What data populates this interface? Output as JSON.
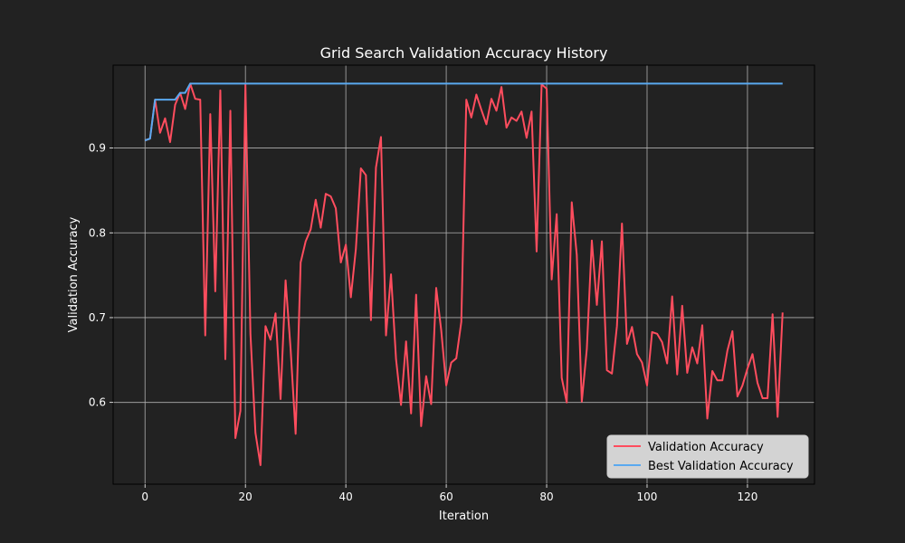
{
  "chart_data": {
    "type": "line",
    "title": "Grid Search Validation Accuracy History",
    "xlabel": "Iteration",
    "ylabel": "Validation Accuracy",
    "xlim": [
      -6.35,
      133.35
    ],
    "ylim": [
      0.5036,
      0.9977
    ],
    "xticks": [
      0,
      20,
      40,
      60,
      80,
      100,
      120
    ],
    "yticks": [
      0.6,
      0.7,
      0.8,
      0.9
    ],
    "ytick_labels": [
      "0.6",
      "0.7",
      "0.8",
      "0.9"
    ],
    "grid": true,
    "legend_position": "lower-right",
    "colors": {
      "background": "#222222",
      "grid": "#b0b0b0"
    },
    "series": [
      {
        "name": "Validation Accuracy",
        "color": "#ff4d5e",
        "values": [
          0.909,
          0.911,
          0.957,
          0.918,
          0.935,
          0.907,
          0.951,
          0.965,
          0.946,
          0.976,
          0.958,
          0.957,
          0.679,
          0.94,
          0.731,
          0.968,
          0.651,
          0.944,
          0.558,
          0.59,
          0.975,
          0.681,
          0.564,
          0.526,
          0.69,
          0.674,
          0.705,
          0.604,
          0.744,
          0.663,
          0.563,
          0.765,
          0.79,
          0.804,
          0.839,
          0.806,
          0.846,
          0.843,
          0.829,
          0.765,
          0.786,
          0.724,
          0.781,
          0.876,
          0.868,
          0.697,
          0.877,
          0.913,
          0.679,
          0.751,
          0.651,
          0.597,
          0.672,
          0.587,
          0.727,
          0.572,
          0.631,
          0.598,
          0.735,
          0.685,
          0.62,
          0.647,
          0.652,
          0.695,
          0.957,
          0.936,
          0.963,
          0.945,
          0.928,
          0.958,
          0.944,
          0.972,
          0.924,
          0.936,
          0.932,
          0.943,
          0.912,
          0.943,
          0.778,
          0.975,
          0.97,
          0.745,
          0.822,
          0.629,
          0.6,
          0.836,
          0.774,
          0.601,
          0.663,
          0.791,
          0.715,
          0.79,
          0.638,
          0.634,
          0.69,
          0.811,
          0.669,
          0.689,
          0.657,
          0.647,
          0.62,
          0.683,
          0.681,
          0.671,
          0.646,
          0.725,
          0.633,
          0.714,
          0.635,
          0.665,
          0.646,
          0.691,
          0.581,
          0.637,
          0.626,
          0.626,
          0.661,
          0.684,
          0.607,
          0.62,
          0.64,
          0.657,
          0.623,
          0.605,
          0.605,
          0.704,
          0.583,
          0.706
        ]
      },
      {
        "name": "Best Validation Accuracy",
        "color": "#5aa9f0",
        "values": [
          0.909,
          0.911,
          0.957,
          0.957,
          0.957,
          0.957,
          0.957,
          0.965,
          0.965,
          0.976,
          0.976,
          0.976,
          0.976,
          0.976,
          0.976,
          0.976,
          0.976,
          0.976,
          0.976,
          0.976,
          0.976,
          0.976,
          0.976,
          0.976,
          0.976,
          0.976,
          0.976,
          0.976,
          0.976,
          0.976,
          0.976,
          0.976,
          0.976,
          0.976,
          0.976,
          0.976,
          0.976,
          0.976,
          0.976,
          0.976,
          0.976,
          0.976,
          0.976,
          0.976,
          0.976,
          0.976,
          0.976,
          0.976,
          0.976,
          0.976,
          0.976,
          0.976,
          0.976,
          0.976,
          0.976,
          0.976,
          0.976,
          0.976,
          0.976,
          0.976,
          0.976,
          0.976,
          0.976,
          0.976,
          0.976,
          0.976,
          0.976,
          0.976,
          0.976,
          0.976,
          0.976,
          0.976,
          0.976,
          0.976,
          0.976,
          0.976,
          0.976,
          0.976,
          0.976,
          0.976,
          0.976,
          0.976,
          0.976,
          0.976,
          0.976,
          0.976,
          0.976,
          0.976,
          0.976,
          0.976,
          0.976,
          0.976,
          0.976,
          0.976,
          0.976,
          0.976,
          0.976,
          0.976,
          0.976,
          0.976,
          0.976,
          0.976,
          0.976,
          0.976,
          0.976,
          0.976,
          0.976,
          0.976,
          0.976,
          0.976,
          0.976,
          0.976,
          0.976,
          0.976,
          0.976,
          0.976,
          0.976,
          0.976,
          0.976,
          0.976,
          0.976,
          0.976,
          0.976,
          0.976,
          0.976,
          0.976,
          0.976,
          0.976
        ]
      }
    ]
  }
}
